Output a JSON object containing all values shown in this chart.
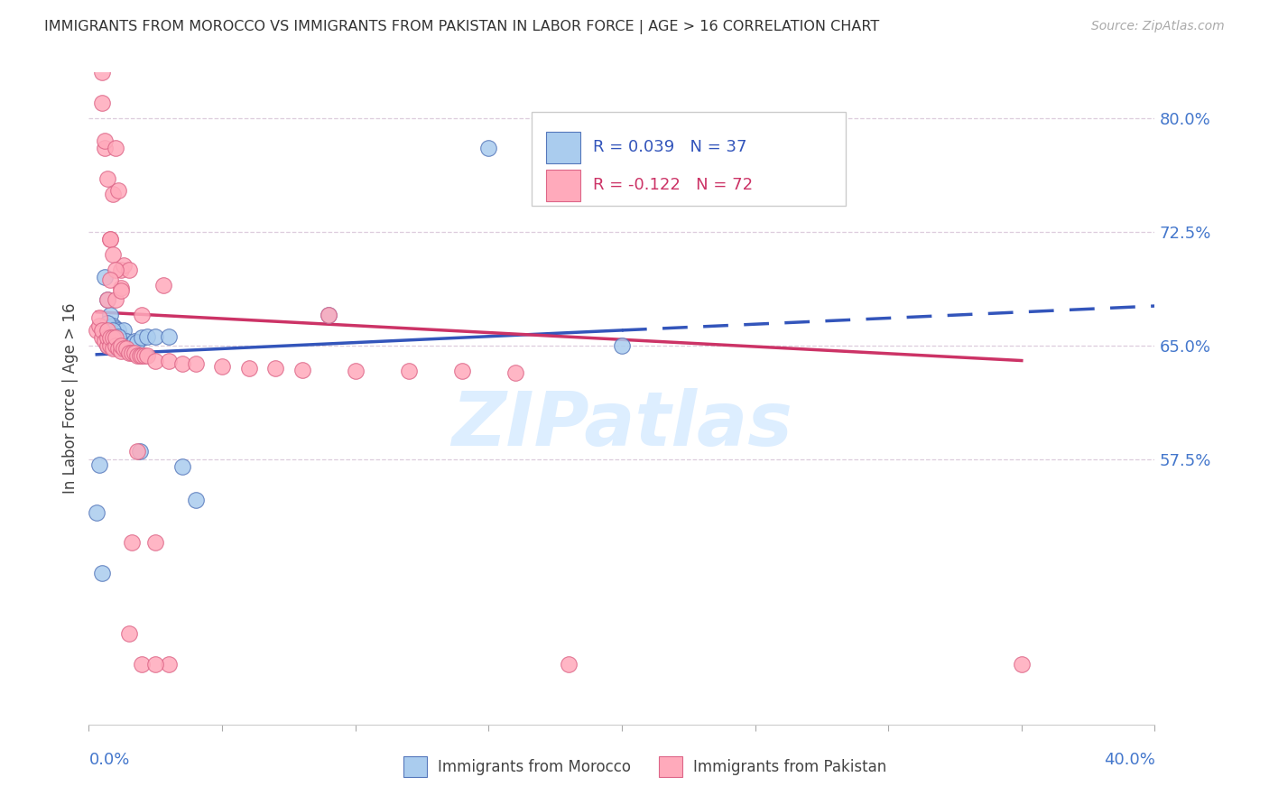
{
  "title": "IMMIGRANTS FROM MOROCCO VS IMMIGRANTS FROM PAKISTAN IN LABOR FORCE | AGE > 16 CORRELATION CHART",
  "source": "Source: ZipAtlas.com",
  "ylabel": "In Labor Force | Age > 16",
  "xlim": [
    0.0,
    0.4
  ],
  "ylim": [
    0.4,
    0.83
  ],
  "yticks": [
    0.575,
    0.65,
    0.725,
    0.8
  ],
  "ytick_labels": [
    "57.5%",
    "65.0%",
    "72.5%",
    "80.0%"
  ],
  "xtick_all": [
    0.0,
    0.05,
    0.1,
    0.15,
    0.2,
    0.25,
    0.3,
    0.35,
    0.4
  ],
  "morocco_R": 0.039,
  "morocco_N": 37,
  "pakistan_R": -0.122,
  "pakistan_N": 72,
  "morocco_dot_color": "#aaccee",
  "morocco_edge_color": "#5577bb",
  "pakistan_dot_color": "#ffaabb",
  "pakistan_edge_color": "#dd6688",
  "trend_morocco_color": "#3355bb",
  "trend_pakistan_color": "#cc3366",
  "grid_color": "#ddccdd",
  "watermark": "ZIPatlas",
  "watermark_color": "#ddeeff",
  "axis_label_color": "#4477cc",
  "morocco_x": [
    0.003,
    0.004,
    0.005,
    0.006,
    0.007,
    0.007,
    0.008,
    0.008,
    0.009,
    0.009,
    0.01,
    0.01,
    0.01,
    0.011,
    0.011,
    0.012,
    0.012,
    0.013,
    0.013,
    0.014,
    0.015,
    0.016,
    0.017,
    0.018,
    0.019,
    0.02,
    0.022,
    0.025,
    0.03,
    0.035,
    0.04,
    0.09,
    0.15,
    0.007,
    0.009,
    0.011,
    0.2
  ],
  "morocco_y": [
    0.54,
    0.571,
    0.5,
    0.695,
    0.65,
    0.68,
    0.661,
    0.67,
    0.657,
    0.663,
    0.655,
    0.658,
    0.661,
    0.65,
    0.66,
    0.648,
    0.655,
    0.651,
    0.66,
    0.653,
    0.648,
    0.651,
    0.653,
    0.652,
    0.58,
    0.655,
    0.656,
    0.656,
    0.656,
    0.57,
    0.548,
    0.67,
    0.78,
    0.665,
    0.66,
    0.656,
    0.65
  ],
  "pakistan_x": [
    0.003,
    0.004,
    0.004,
    0.005,
    0.005,
    0.005,
    0.006,
    0.006,
    0.007,
    0.007,
    0.007,
    0.007,
    0.008,
    0.008,
    0.008,
    0.009,
    0.009,
    0.009,
    0.01,
    0.01,
    0.01,
    0.011,
    0.011,
    0.012,
    0.012,
    0.012,
    0.013,
    0.013,
    0.014,
    0.015,
    0.015,
    0.016,
    0.017,
    0.018,
    0.019,
    0.02,
    0.02,
    0.021,
    0.022,
    0.025,
    0.028,
    0.03,
    0.035,
    0.04,
    0.05,
    0.06,
    0.07,
    0.08,
    0.09,
    0.1,
    0.12,
    0.14,
    0.16,
    0.18,
    0.006,
    0.007,
    0.008,
    0.009,
    0.01,
    0.012,
    0.015,
    0.016,
    0.018,
    0.02,
    0.025,
    0.03,
    0.35,
    0.025,
    0.005,
    0.008,
    0.01,
    0.012
  ],
  "pakistan_y": [
    0.66,
    0.663,
    0.668,
    0.655,
    0.66,
    0.81,
    0.653,
    0.78,
    0.65,
    0.655,
    0.66,
    0.68,
    0.65,
    0.655,
    0.72,
    0.648,
    0.655,
    0.75,
    0.65,
    0.655,
    0.68,
    0.648,
    0.752,
    0.646,
    0.65,
    0.7,
    0.648,
    0.703,
    0.648,
    0.645,
    0.7,
    0.645,
    0.645,
    0.643,
    0.643,
    0.643,
    0.67,
    0.643,
    0.643,
    0.64,
    0.69,
    0.64,
    0.638,
    0.638,
    0.636,
    0.635,
    0.635,
    0.634,
    0.67,
    0.633,
    0.633,
    0.633,
    0.632,
    0.44,
    0.785,
    0.76,
    0.72,
    0.71,
    0.7,
    0.688,
    0.46,
    0.52,
    0.58,
    0.44,
    0.52,
    0.44,
    0.44,
    0.44,
    0.83,
    0.693,
    0.78,
    0.686
  ],
  "trend_morocco_x0": 0.003,
  "trend_morocco_x1": 0.2,
  "trend_morocco_xext": 0.4,
  "trend_morocco_y0": 0.644,
  "trend_morocco_y1": 0.66,
  "trend_morocco_yext": 0.676,
  "trend_pakistan_x0": 0.003,
  "trend_pakistan_x1": 0.35,
  "trend_pakistan_y0": 0.672,
  "trend_pakistan_y1": 0.64
}
